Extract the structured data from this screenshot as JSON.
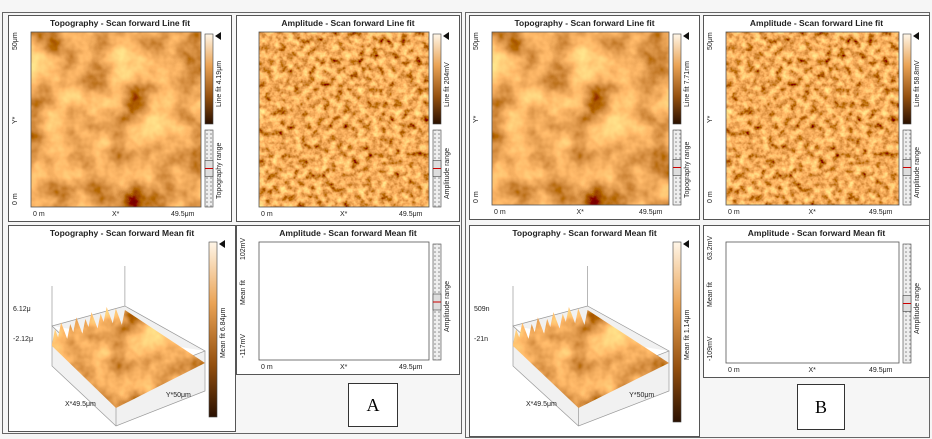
{
  "group_labels": [
    "A",
    "B"
  ],
  "panels": [
    {
      "title": "Topography - Scan forward   Line fit",
      "y_top": "50μm",
      "y_mid": "Y*",
      "y_bottom": "0 m",
      "x_left": "0 m",
      "x_mid": "X*",
      "x_right": "49.5μm",
      "colorbar": "Line fit 4.19μm",
      "range": "Topography range"
    },
    {
      "title": "Amplitude - Scan forward   Line fit",
      "x_left": "0 m",
      "x_mid": "X*",
      "x_right": "49.5μm",
      "colorbar": "Line fit 204mV",
      "range": "Amplitude range"
    },
    {
      "title": "Topography - Scan forward   Mean fit",
      "z_top": "6.12μ",
      "z_bottom": "-2.12μ",
      "x_axis": "X*49.5μm",
      "y_axis": "Y*50μm",
      "colorbar": "Mean fit 6.84μm"
    },
    {
      "title": "Amplitude - Scan forward   Mean fit",
      "y_top": "102mV",
      "y_mid": "Mean fit",
      "y_bottom": "-117mV",
      "x_left": "0 m",
      "x_mid": "X*",
      "x_right": "49.5μm",
      "range": "Amplitude range"
    },
    {
      "title": "Topography - Scan forward   Line fit",
      "y_top": "50μm",
      "y_mid": "Y*",
      "y_bottom": "0 m",
      "x_left": "0 m",
      "x_mid": "X*",
      "x_right": "49.5μm",
      "colorbar": "Line fit 7.71nm",
      "range": "Topography range"
    },
    {
      "title": "Amplitude - Scan forward   Line fit",
      "y_top": "50μm",
      "y_mid": "Y*",
      "y_bottom": "0 m",
      "x_left": "0 m",
      "x_mid": "X*",
      "x_right": "49.5μm",
      "colorbar": "Line fit 58.8mV",
      "range": "Amplitude range"
    },
    {
      "title": "Topography - Scan forward   Mean fit",
      "z_top": "509n",
      "z_bottom": "-21n",
      "x_axis": "X*49.5μm",
      "y_axis": "Y*50μm",
      "colorbar": "Mean fit 1.14μm"
    },
    {
      "title": "Amplitude - Scan forward   Mean fit",
      "y_top": "63.2mV",
      "y_mid": "Mean fit",
      "y_bottom": "-109mV",
      "x_left": "0 m",
      "x_mid": "X*",
      "x_right": "49.5μm",
      "range": "Amplitude range"
    }
  ]
}
